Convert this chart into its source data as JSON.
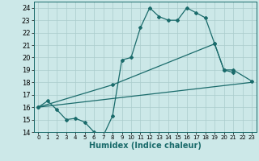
{
  "xlabel": "Humidex (Indice chaleur)",
  "bg_color": "#cce8e8",
  "grid_color": "#aacccc",
  "line_color": "#1a6b6b",
  "xlim": [
    -0.5,
    23.5
  ],
  "ylim": [
    14,
    24.5
  ],
  "xticks": [
    0,
    1,
    2,
    3,
    4,
    5,
    6,
    7,
    8,
    9,
    10,
    11,
    12,
    13,
    14,
    15,
    16,
    17,
    18,
    19,
    20,
    21,
    22,
    23
  ],
  "yticks": [
    14,
    15,
    16,
    17,
    18,
    19,
    20,
    21,
    22,
    23,
    24
  ],
  "line1_x": [
    0,
    1,
    2,
    3,
    4,
    5,
    6,
    7,
    8,
    9,
    10,
    11,
    12,
    13,
    14,
    15,
    16,
    17,
    18,
    19,
    20,
    21
  ],
  "line1_y": [
    16.0,
    16.5,
    15.8,
    15.0,
    15.1,
    14.8,
    14.0,
    13.7,
    15.3,
    19.8,
    20.0,
    22.4,
    24.0,
    23.3,
    23.0,
    23.0,
    24.0,
    23.6,
    23.2,
    21.1,
    19.0,
    18.8
  ],
  "line2_x": [
    0,
    8,
    19,
    20,
    21,
    23
  ],
  "line2_y": [
    16.0,
    17.8,
    21.1,
    19.0,
    19.0,
    18.1
  ],
  "line3_x": [
    0,
    23
  ],
  "line3_y": [
    16.0,
    18.0
  ],
  "font_size_ticks_x": 5,
  "font_size_ticks_y": 6,
  "font_size_label": 7
}
